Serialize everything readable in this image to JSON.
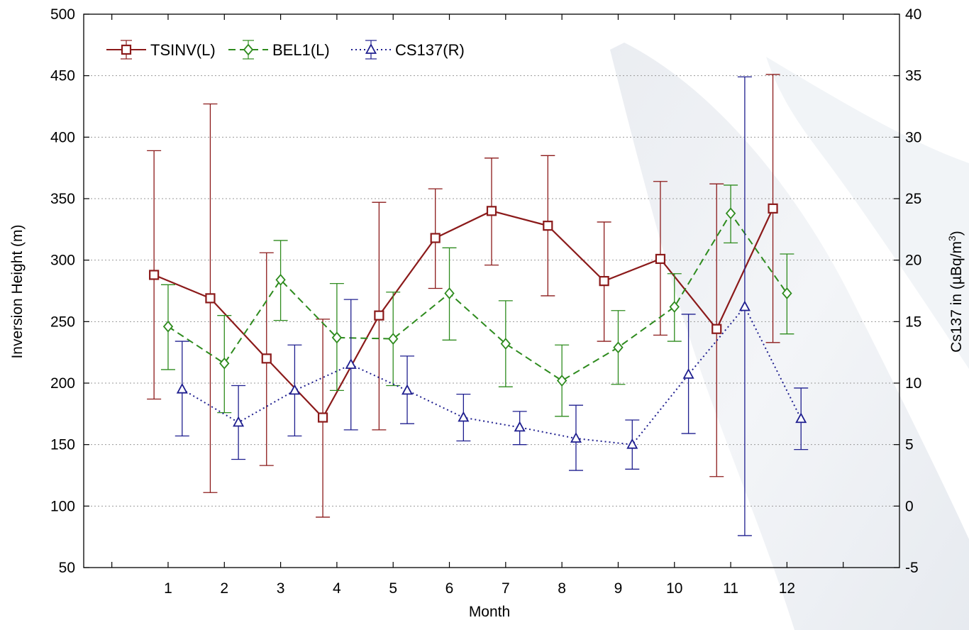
{
  "chart_data": {
    "type": "line",
    "title": "",
    "xlabel": "Month",
    "ylabel_left": "Inversion Height (m)",
    "ylabel_right_prefix": "Cs137 in (",
    "ylabel_right_unit": "µBq/m",
    "ylabel_right_sup": "3",
    "ylabel_right_suffix": ")",
    "x_categories": [
      "1",
      "2",
      "3",
      "4",
      "5",
      "6",
      "7",
      "8",
      "9",
      "10",
      "11",
      "12"
    ],
    "x_range": [
      -0.5,
      14
    ],
    "ylim_left": [
      50,
      500
    ],
    "yticks_left": [
      50,
      100,
      150,
      200,
      250,
      300,
      350,
      400,
      450,
      500
    ],
    "ylim_right": [
      -5,
      40
    ],
    "yticks_right": [
      -5,
      0,
      5,
      10,
      15,
      20,
      25,
      30,
      35,
      40
    ],
    "grid": "horizontal dotted",
    "legend_position": "top-left",
    "series": [
      {
        "name": "TSINV(L)",
        "axis": "left",
        "color": "#8B1A1A",
        "line_style": "solid",
        "marker": "square",
        "x": [
          0.75,
          1.75,
          2.75,
          3.75,
          4.75,
          5.75,
          6.75,
          7.75,
          8.75,
          9.75,
          10.75,
          11.75
        ],
        "values": [
          288,
          269,
          220,
          172,
          255,
          318,
          340,
          328,
          283,
          301,
          244,
          342
        ],
        "lower": [
          187,
          111,
          133,
          91,
          162,
          277,
          296,
          271,
          234,
          239,
          124,
          233
        ],
        "upper": [
          389,
          427,
          306,
          252,
          347,
          358,
          383,
          385,
          331,
          364,
          362,
          451
        ]
      },
      {
        "name": "BEL1(L)",
        "axis": "left",
        "color": "#2E8B1E",
        "line_style": "dashed",
        "marker": "diamond",
        "x": [
          1,
          2,
          3,
          4,
          5,
          6,
          7,
          8,
          9,
          10,
          11,
          12
        ],
        "values": [
          246,
          216,
          284,
          237,
          236,
          273,
          232,
          202,
          229,
          262,
          338,
          273
        ],
        "lower": [
          211,
          176,
          251,
          194,
          198,
          235,
          197,
          173,
          199,
          234,
          314,
          240
        ],
        "upper": [
          280,
          255,
          316,
          281,
          274,
          310,
          267,
          231,
          259,
          289,
          361,
          305
        ]
      },
      {
        "name": "CS137(R)",
        "axis": "right",
        "color": "#1F1F8F",
        "line_style": "dotted",
        "marker": "triangle",
        "x": [
          1.25,
          2.25,
          3.25,
          4.25,
          5.25,
          6.25,
          7.25,
          8.25,
          9.25,
          10.25,
          11.25,
          12.25
        ],
        "values": [
          9.5,
          6.8,
          9.4,
          11.5,
          9.4,
          7.2,
          6.4,
          5.5,
          5.0,
          10.7,
          16.2,
          7.1
        ],
        "lower": [
          5.7,
          3.8,
          5.7,
          6.2,
          6.7,
          5.3,
          5.0,
          2.9,
          3.0,
          5.9,
          -2.4,
          4.6
        ],
        "upper": [
          13.4,
          9.8,
          13.1,
          16.8,
          12.2,
          9.1,
          7.7,
          8.2,
          7.0,
          15.6,
          34.9,
          9.6
        ]
      }
    ]
  }
}
